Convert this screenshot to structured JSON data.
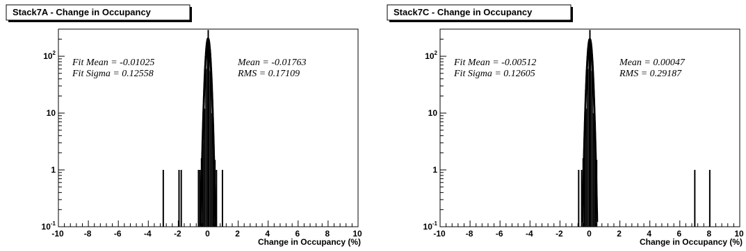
{
  "chart_data": [
    {
      "type": "histogram",
      "title": "Stack7A - Change in Occupancy",
      "xlabel": "Change in Occupancy (%)",
      "ylabel": "",
      "xlim": [
        -10,
        10
      ],
      "ylim": [
        0.1,
        300
      ],
      "yscale": "log",
      "x_ticks": [
        "-10",
        "-8",
        "-6",
        "-4",
        "-2",
        "0",
        "2",
        "4",
        "6",
        "8",
        "10"
      ],
      "y_ticks": [
        {
          "value": 0.1,
          "base": "10",
          "exp": "-1"
        },
        {
          "value": 1,
          "base": "1",
          "exp": ""
        },
        {
          "value": 10,
          "base": "10",
          "exp": ""
        },
        {
          "value": 100,
          "base": "10",
          "exp": "2"
        }
      ],
      "stats_left": [
        "Fit Mean = -0.01025",
        "Fit Sigma = 0.12558"
      ],
      "stats_right": [
        "Mean = -0.01763",
        "RMS = 0.17109"
      ],
      "fit": {
        "mean": -0.01025,
        "sigma": 0.12558,
        "peak": 205
      },
      "bins": [
        {
          "x": -3.0,
          "y": 1
        },
        {
          "x": -1.95,
          "y": 1
        },
        {
          "x": -1.8,
          "y": 1
        },
        {
          "x": -0.65,
          "y": 1
        },
        {
          "x": -0.55,
          "y": 1
        },
        {
          "x": -0.45,
          "y": 1.6
        },
        {
          "x": -0.35,
          "y": 3
        },
        {
          "x": -0.25,
          "y": 12
        },
        {
          "x": -0.15,
          "y": 60
        },
        {
          "x": -0.05,
          "y": 200
        },
        {
          "x": 0.0,
          "y": 290
        },
        {
          "x": 0.05,
          "y": 190
        },
        {
          "x": 0.15,
          "y": 55
        },
        {
          "x": 0.25,
          "y": 10
        },
        {
          "x": 0.35,
          "y": 2.5
        },
        {
          "x": 0.45,
          "y": 1.5
        },
        {
          "x": 0.55,
          "y": 1
        },
        {
          "x": 0.95,
          "y": 1
        }
      ]
    },
    {
      "type": "histogram",
      "title": "Stack7C - Change in Occupancy",
      "xlabel": "Change in Occupancy (%)",
      "ylabel": "",
      "xlim": [
        -10,
        10
      ],
      "ylim": [
        0.1,
        300
      ],
      "yscale": "log",
      "x_ticks": [
        "-10",
        "-8",
        "-6",
        "-4",
        "-2",
        "0",
        "2",
        "4",
        "6",
        "8",
        "10"
      ],
      "y_ticks": [
        {
          "value": 0.1,
          "base": "10",
          "exp": "-1"
        },
        {
          "value": 1,
          "base": "1",
          "exp": ""
        },
        {
          "value": 10,
          "base": "10",
          "exp": ""
        },
        {
          "value": 100,
          "base": "10",
          "exp": "2"
        }
      ],
      "stats_left": [
        "Fit Mean = -0.00512",
        "Fit Sigma = 0.12605"
      ],
      "stats_right": [
        "Mean = 0.00047",
        "RMS = 0.29187"
      ],
      "fit": {
        "mean": -0.00512,
        "sigma": 0.12605,
        "peak": 200
      },
      "bins": [
        {
          "x": -0.75,
          "y": 1
        },
        {
          "x": -0.55,
          "y": 1
        },
        {
          "x": -0.45,
          "y": 1.6
        },
        {
          "x": -0.35,
          "y": 3
        },
        {
          "x": -0.25,
          "y": 12
        },
        {
          "x": -0.15,
          "y": 60
        },
        {
          "x": -0.05,
          "y": 200
        },
        {
          "x": 0.0,
          "y": 290
        },
        {
          "x": 0.05,
          "y": 190
        },
        {
          "x": 0.15,
          "y": 55
        },
        {
          "x": 0.25,
          "y": 10
        },
        {
          "x": 0.35,
          "y": 2.5
        },
        {
          "x": 0.45,
          "y": 1.5
        },
        {
          "x": 7.0,
          "y": 1
        },
        {
          "x": 8.0,
          "y": 1
        }
      ]
    }
  ]
}
